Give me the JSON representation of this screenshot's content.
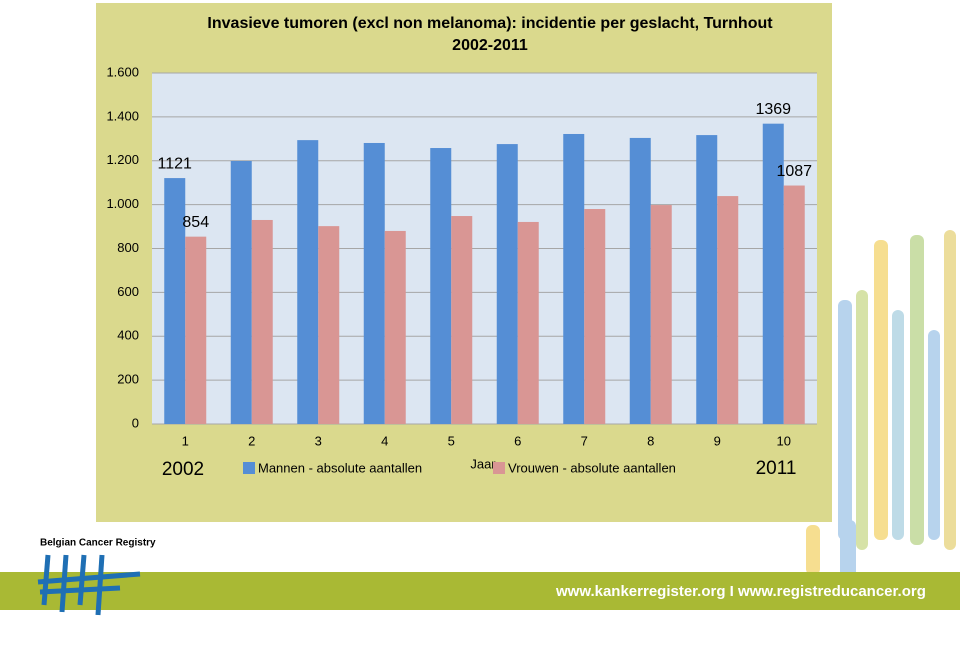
{
  "chart_data": {
    "type": "bar",
    "title": "Invasieve tumoren (excl non melanoma): incidentie per geslacht, Turnhout",
    "subtitle": "2002-2011",
    "x_label": "Jaar",
    "annotations": [
      "2002",
      "2011"
    ],
    "categories": [
      "1",
      "2",
      "3",
      "4",
      "5",
      "6",
      "7",
      "8",
      "9",
      "10"
    ],
    "series": [
      {
        "name": "Mannen - absolute aantallen",
        "color": "#558ed5",
        "values": [
          1121,
          1199,
          1294,
          1281,
          1258,
          1276,
          1322,
          1304,
          1317,
          1369
        ]
      },
      {
        "name": "Vrouwen - absolute aantallen",
        "color": "#d99694",
        "values": [
          854,
          930,
          902,
          880,
          948,
          921,
          980,
          998,
          1039,
          1087
        ]
      }
    ],
    "ylim": [
      0,
      1600
    ],
    "yticks": [
      0,
      200,
      400,
      600,
      800,
      {
        "value": 1000,
        "label": "1.000"
      },
      {
        "value": 1200,
        "label": "1.200"
      },
      {
        "value": 1400,
        "label": "1.400"
      },
      {
        "value": 1600,
        "label": "1.600"
      }
    ],
    "grid": true
  },
  "footer": {
    "brand": "Belgian Cancer Registry",
    "website": "www.kankerregister.org  I  www.registreducancer.org"
  }
}
